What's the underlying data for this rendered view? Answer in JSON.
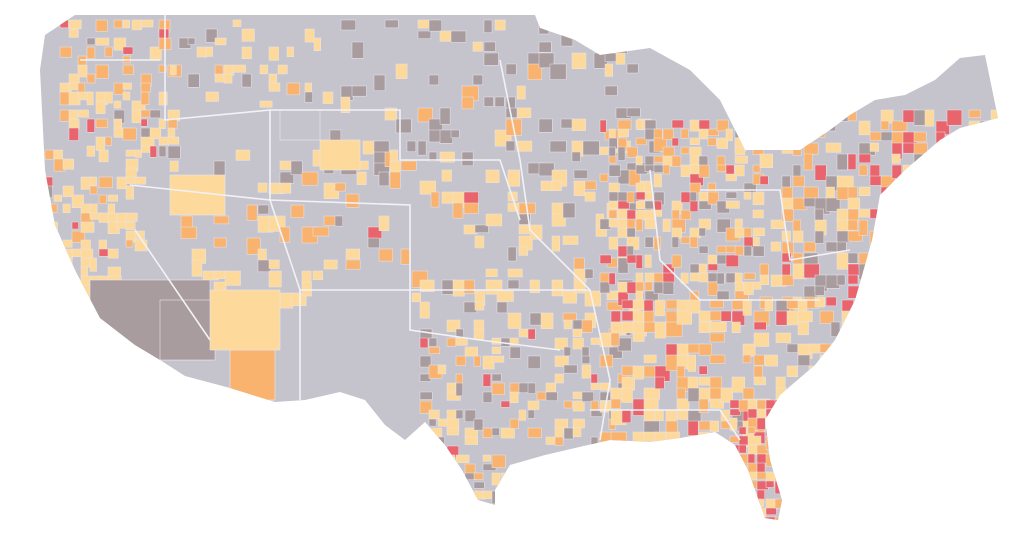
{
  "map": {
    "palette": [
      "#c5c3cc",
      "#a99c9e",
      "#fdd99b",
      "#f9b36f",
      "#e9646c"
    ]
  }
}
